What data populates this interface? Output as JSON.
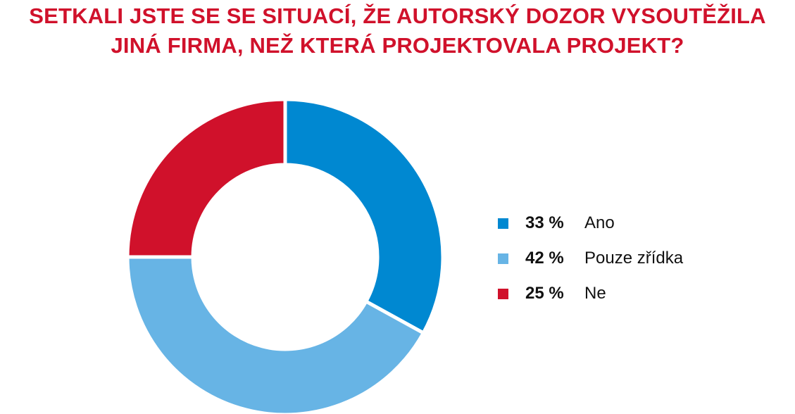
{
  "title_lines": [
    "SETKALI JSTE SE SE SITUACÍ, ŽE AUTORSKÝ DOZOR VYSOUTĚŽILA",
    "JINÁ FIRMA, NEŽ KTERÁ PROJEKTOVALA PROJEKT?"
  ],
  "chart_data": {
    "type": "pie",
    "title": "SETKALI JSTE SE SE SITUACÍ, ŽE AUTORSKÝ DOZOR VYSOUTĚŽILA JINÁ FIRMA, NEŽ KTERÁ PROJEKTOVALA PROJEKT?",
    "donut": true,
    "legend_placement": "right",
    "unit": "%",
    "categories": [
      "Ano",
      "Pouze zřídka",
      "Ne"
    ],
    "values": [
      33,
      42,
      25
    ],
    "colors": [
      "#0088d1",
      "#67b4e5",
      "#d0112b"
    ]
  },
  "legend": [
    {
      "pct": "33 %",
      "label": "Ano",
      "color": "#0088d1"
    },
    {
      "pct": "42 %",
      "label": "Pouze zřídka",
      "color": "#67b4e5"
    },
    {
      "pct": "25 %",
      "label": "Ne",
      "color": "#d0112b"
    }
  ]
}
